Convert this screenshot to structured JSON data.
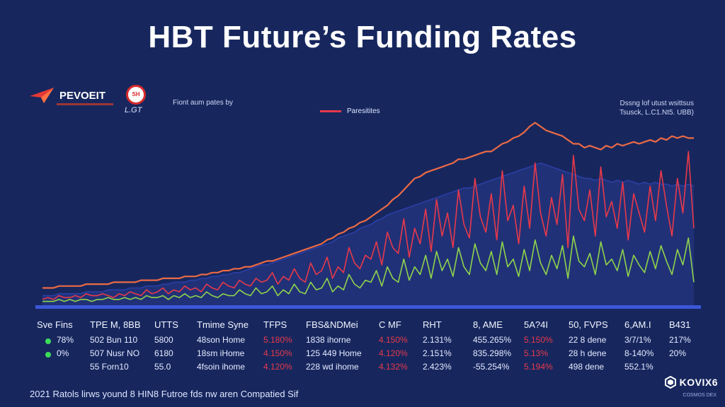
{
  "title": "HBT Future’s Funding Rates",
  "brand": {
    "name": "PEVOEIT",
    "partner_badge": "SH",
    "partner_text": "L.GT",
    "powered_text": "Fiont aum pates by"
  },
  "legend": {
    "label": "Paresitites"
  },
  "note": {
    "line1": "Dssng lof utust wsittsus",
    "line2": "Tsusck, L.C1.Nt5. UBB)"
  },
  "chart_data": {
    "type": "line",
    "title": "HBT Future’s Funding Rates",
    "xlabel": "",
    "ylabel": "",
    "ylim": [
      0,
      100
    ],
    "x": [
      0,
      1,
      2,
      3,
      4,
      5,
      6,
      7,
      8,
      9,
      10,
      11,
      12,
      13,
      14,
      15,
      16,
      17,
      18,
      19,
      20,
      21,
      22,
      23,
      24,
      25,
      26,
      27,
      28,
      29,
      30,
      31,
      32,
      33,
      34,
      35,
      36,
      37,
      38,
      39,
      40,
      41,
      42,
      43,
      44,
      45,
      46,
      47,
      48,
      49,
      50,
      51,
      52,
      53,
      54,
      55,
      56,
      57,
      58,
      59,
      60,
      61,
      62,
      63,
      64,
      65,
      66,
      67,
      68,
      69,
      70,
      71,
      72,
      73,
      74,
      75,
      76,
      77,
      78,
      79,
      80,
      81,
      82,
      83,
      84,
      85,
      86,
      87,
      88,
      89,
      90,
      91,
      92,
      93,
      94,
      95,
      96,
      97,
      98,
      99,
      100,
      101,
      102,
      103,
      104,
      105,
      106,
      107,
      108,
      109,
      110,
      111,
      112,
      113,
      114,
      115,
      116,
      117,
      118,
      119
    ],
    "grid": false,
    "legend_position": "top-center",
    "series": [
      {
        "name": "Paresitites",
        "color": "#e8394a",
        "values": [
          3,
          4,
          3,
          5,
          4,
          4,
          5,
          4,
          6,
          5,
          5,
          6,
          5,
          4,
          6,
          5,
          7,
          6,
          5,
          8,
          6,
          7,
          9,
          6,
          8,
          7,
          10,
          8,
          9,
          7,
          11,
          9,
          8,
          12,
          10,
          9,
          13,
          11,
          10,
          14,
          12,
          13,
          17,
          11,
          15,
          13,
          19,
          14,
          12,
          22,
          16,
          18,
          25,
          14,
          20,
          17,
          30,
          22,
          19,
          26,
          24,
          33,
          21,
          38,
          30,
          27,
          45,
          25,
          40,
          32,
          50,
          28,
          55,
          36,
          48,
          30,
          60,
          42,
          35,
          66,
          46,
          38,
          58,
          34,
          70,
          44,
          52,
          32,
          62,
          40,
          74,
          48,
          36,
          56,
          42,
          68,
          30,
          78,
          50,
          44,
          60,
          36,
          72,
          46,
          54,
          40,
          64,
          34,
          58,
          48,
          38,
          62,
          44,
          70,
          52,
          36,
          66,
          48,
          80,
          40
        ]
      },
      {
        "color": "#ec6a45",
        "values": [
          9,
          9,
          9,
          10,
          10,
          10,
          10,
          10,
          11,
          11,
          11,
          11,
          11,
          12,
          12,
          12,
          12,
          12,
          13,
          13,
          13,
          13,
          14,
          14,
          14,
          14,
          15,
          15,
          15,
          16,
          16,
          17,
          17,
          18,
          18,
          19,
          19,
          20,
          20,
          21,
          22,
          23,
          23,
          24,
          25,
          26,
          27,
          28,
          29,
          30,
          31,
          32,
          34,
          35,
          37,
          38,
          40,
          41,
          43,
          44,
          46,
          48,
          50,
          52,
          55,
          57,
          60,
          63,
          66,
          67,
          69,
          70,
          71,
          72,
          73,
          74,
          76,
          76,
          77,
          78,
          79,
          80,
          80,
          82,
          84,
          85,
          87,
          88,
          90,
          93,
          95,
          93,
          91,
          90,
          89,
          88,
          86,
          84,
          84,
          82,
          83,
          82,
          81,
          83,
          82,
          84,
          83,
          84,
          85,
          84,
          85,
          86,
          85,
          87,
          86,
          88,
          87,
          88,
          87,
          87
        ]
      },
      {
        "color": "#2b3fa6",
        "values": [
          5,
          5,
          5,
          6,
          6,
          6,
          6,
          6,
          7,
          7,
          7,
          7,
          8,
          8,
          8,
          8,
          9,
          9,
          9,
          10,
          10,
          10,
          11,
          11,
          12,
          12,
          12,
          13,
          13,
          14,
          14,
          15,
          15,
          16,
          16,
          17,
          17,
          18,
          19,
          20,
          21,
          21,
          22,
          23,
          24,
          25,
          26,
          27,
          28,
          29,
          30,
          31,
          32,
          33,
          35,
          36,
          37,
          38,
          40,
          41,
          42,
          44,
          45,
          47,
          48,
          49,
          50,
          51,
          52,
          53,
          54,
          55,
          56,
          57,
          58,
          59,
          60,
          61,
          61,
          62,
          63,
          64,
          65,
          66,
          67,
          68,
          69,
          70,
          71,
          72,
          73,
          74,
          73,
          72,
          71,
          70,
          69,
          68,
          67,
          66,
          66,
          65,
          66,
          65,
          64,
          65,
          64,
          65,
          64,
          63,
          64,
          63,
          64,
          63,
          63,
          62,
          63,
          62,
          63,
          62
        ]
      },
      {
        "color": "#8fd44c",
        "values": [
          2,
          2,
          2,
          3,
          2,
          3,
          2,
          3,
          3,
          2,
          3,
          3,
          4,
          3,
          3,
          4,
          3,
          4,
          3,
          5,
          4,
          4,
          5,
          3,
          5,
          4,
          6,
          4,
          5,
          4,
          7,
          5,
          4,
          6,
          5,
          5,
          8,
          6,
          5,
          9,
          6,
          7,
          10,
          5,
          8,
          6,
          11,
          7,
          6,
          12,
          8,
          9,
          14,
          7,
          10,
          8,
          16,
          11,
          9,
          13,
          12,
          18,
          10,
          20,
          14,
          12,
          24,
          13,
          20,
          16,
          26,
          14,
          28,
          18,
          24,
          15,
          30,
          20,
          16,
          32,
          22,
          18,
          28,
          16,
          33,
          20,
          24,
          15,
          29,
          18,
          34,
          22,
          16,
          26,
          19,
          31,
          14,
          36,
          23,
          20,
          27,
          16,
          33,
          21,
          24,
          18,
          29,
          15,
          26,
          21,
          17,
          28,
          19,
          31,
          23,
          16,
          29,
          21,
          35,
          12
        ]
      }
    ]
  },
  "table": {
    "headers": [
      "Sve Fins",
      "TPE M, 8BB",
      "UTTS",
      "Tmime Syne",
      "TFPS",
      "FBS&NDMei",
      "C MF",
      "RHT",
      "8, AME",
      "5A?4I",
      "50, FVPS",
      "6,AM.I",
      "B431"
    ],
    "rows": [
      {
        "status_color": "#3ddc5a",
        "cells": [
          "78%",
          "502 Bun 110",
          "5800",
          "48son Home",
          "5.180%",
          "1838 ihorne",
          "4.150%",
          "2.131%",
          "455.265%",
          "5.150%",
          "22 8 dene",
          "3/7/1%",
          "217%"
        ]
      },
      {
        "status_color": "#3ddc5a",
        "cells": [
          "0%",
          "507 Nusr NO",
          "6180",
          "18sm iHome",
          "4.150%",
          "125 449 Home",
          "4.120%",
          "2.151%",
          "835.298%",
          "5.13%",
          "28 h dene",
          "8-140%",
          "20%"
        ]
      },
      {
        "status_color": "",
        "cells": [
          "",
          "55 Forn10",
          "55.0",
          "4fsoin ihome",
          "4.120%",
          "228 wd ihome",
          "4.132%",
          "2.423%",
          "-55.254%",
          "5.194%",
          "498 dene",
          "552.1%",
          ""
        ]
      }
    ]
  },
  "footer": {
    "text": "2021 Ratols lirws yound 8 HIN8 Futroe fds nw aren Compatied Sif"
  },
  "corner": {
    "name": "KOVIX6",
    "sub": "COSMOS DEX"
  }
}
